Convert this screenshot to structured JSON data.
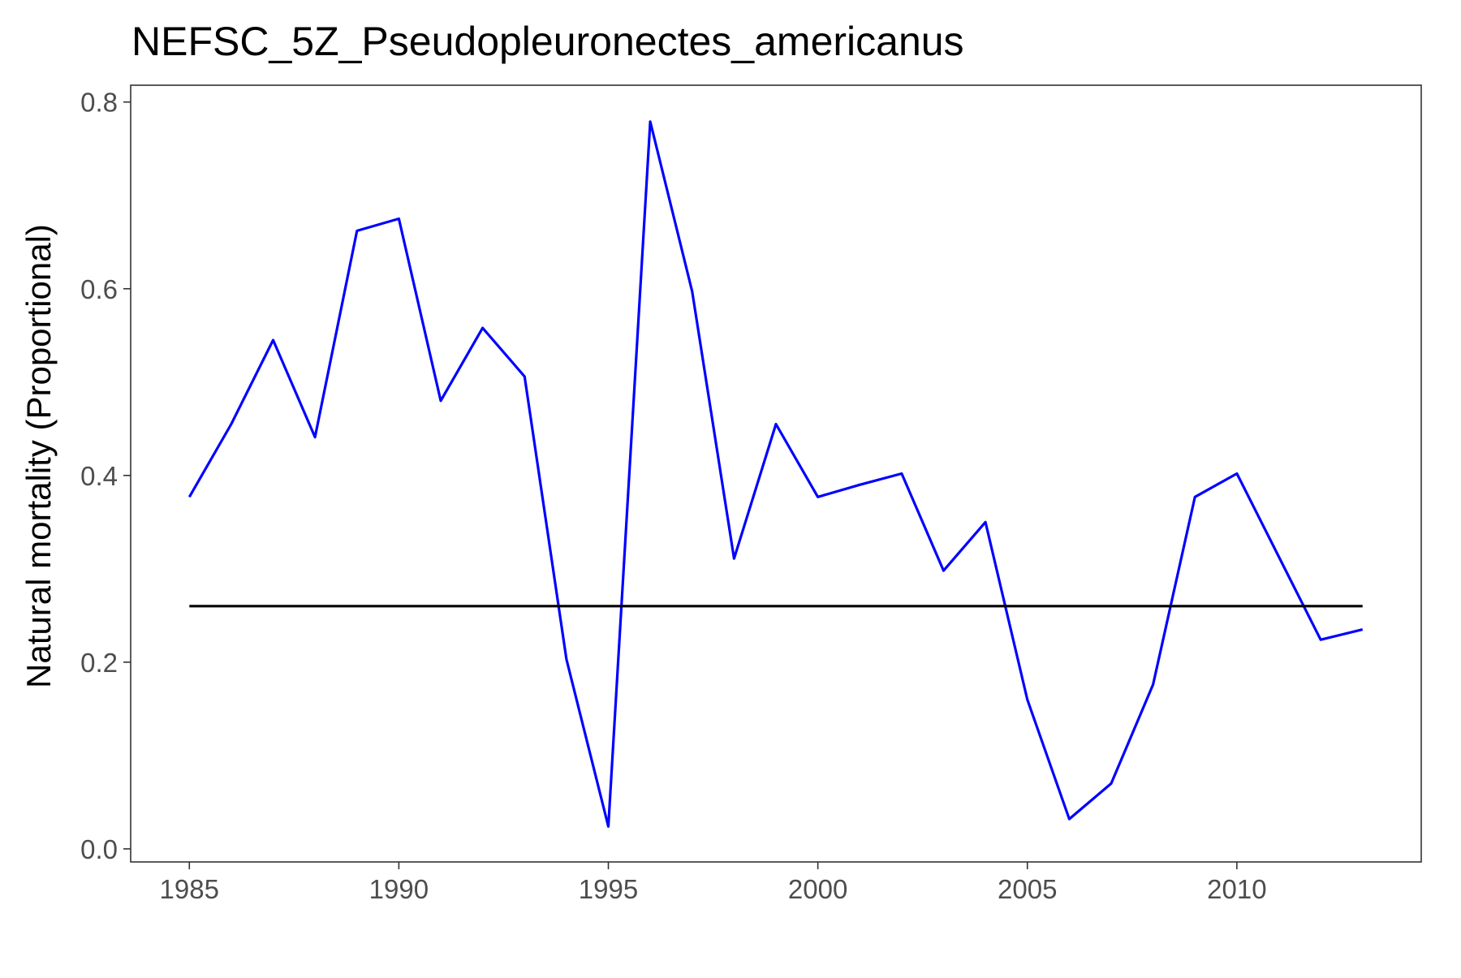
{
  "chart_data": {
    "type": "line",
    "title": "NEFSC_5Z_Pseudopleuronectes_americanus",
    "xlabel": "",
    "ylabel": "Natural mortality (Proportional)",
    "xlim": [
      1983.6,
      2014.4
    ],
    "ylim": [
      -0.014,
      0.818
    ],
    "x_ticks": [
      1985,
      1990,
      1995,
      2000,
      2005,
      2010
    ],
    "x_tick_labels": [
      "1985",
      "1990",
      "1995",
      "2000",
      "2005",
      "2010"
    ],
    "y_ticks": [
      0.0,
      0.2,
      0.4,
      0.6,
      0.8
    ],
    "y_tick_labels": [
      "0.0",
      "0.2",
      "0.4",
      "0.6",
      "0.8"
    ],
    "grid": false,
    "legend": "none",
    "series": [
      {
        "color": "#0000ff",
        "x": [
          1985,
          1986,
          1987,
          1988,
          1989,
          1990,
          1991,
          1992,
          1993,
          1994,
          1995,
          1996,
          1997,
          1998,
          1999,
          2000,
          2001,
          2002,
          2003,
          2004,
          2005,
          2006,
          2007,
          2008,
          2009,
          2010,
          2011,
          2012,
          2013
        ],
        "y": [
          0.377,
          0.455,
          0.545,
          0.441,
          0.662,
          0.675,
          0.48,
          0.558,
          0.506,
          0.203,
          0.024,
          0.779,
          0.597,
          0.311,
          0.455,
          0.377,
          0.39,
          0.402,
          0.298,
          0.35,
          0.16,
          0.032,
          0.07,
          0.176,
          0.377,
          0.402,
          0.313,
          0.224,
          0.235
        ]
      },
      {
        "color": "#000000",
        "x": [
          1985,
          2013
        ],
        "y": [
          0.26,
          0.26
        ]
      }
    ]
  }
}
